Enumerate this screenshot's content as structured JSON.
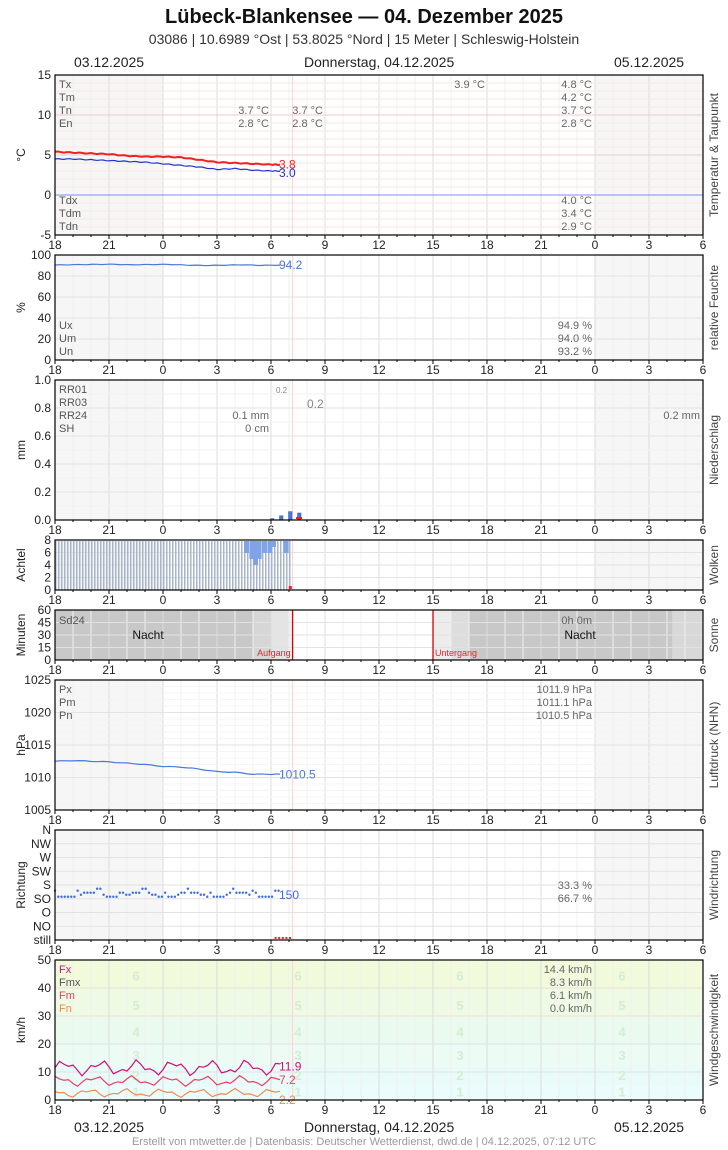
{
  "header": {
    "title": "Lübeck-Blankensee  —  04. Dezember 2025",
    "subtitle": "03086  |  10.6989 °Ost  |  53.8025 °Nord  |  15 Meter  |  Schleswig-Holstein",
    "date_left": "03.12.2025",
    "date_center": "Donnerstag, 04.12.2025",
    "date_right": "05.12.2025"
  },
  "footer": {
    "date_left": "03.12.2025",
    "date_center": "Donnerstag, 04.12.2025",
    "date_right": "05.12.2025",
    "credit": "Erstellt von mtwetter.de | Datenbasis: Deutscher Wetterdienst, dwd.de | 04.12.2025, 07:12 UTC"
  },
  "time_axis": [
    "18",
    "21",
    "0",
    "3",
    "6",
    "9",
    "12",
    "15",
    "18",
    "21",
    "0",
    "3",
    "6"
  ],
  "colors": {
    "temp": "#ee2222",
    "dewpoint": "#2233cc",
    "humidity": "#4a78d8",
    "precip": "#4a78d8",
    "pressure": "#4a78d8",
    "winddir": "#3b6de0",
    "fx": "#cc1177",
    "fm": "#e84060",
    "fn": "#f08a50",
    "sunline": "#dd0000"
  },
  "chart_data": [
    {
      "type": "line",
      "title": "Temperatur & Taupunkt",
      "ylabel": "°C",
      "ylim": [
        -5,
        15
      ],
      "yticks": [
        "15",
        "10",
        "5",
        "0",
        "-5"
      ],
      "legend_top": [
        "Tx",
        "Tm",
        "Tn",
        "En"
      ],
      "legend_bottom": [
        "Tdx",
        "Tdm",
        "Tdn"
      ],
      "values_day1": {
        "Tn": "3.7 °C",
        "En": "2.8 °C"
      },
      "values_day2_top": {
        "Tn": "3.7 °C",
        "En": "2.8 °C"
      },
      "value_noon": "3.9 °C",
      "values_right_top": {
        "Tx": "4.8 °C",
        "Tm": "4.2 °C",
        "Tn": "3.7 °C",
        "En": "2.8 °C"
      },
      "values_right_bottom": {
        "Tdx": "4.0 °C",
        "Tdm": "3.4 °C",
        "Tdn": "2.9 °C"
      },
      "series": [
        {
          "name": "Temperatur",
          "last": "3.8",
          "x_hours": [
            0,
            3,
            6,
            9,
            12,
            15,
            18,
            21,
            24,
            27,
            30,
            33,
            36,
            37.5
          ],
          "values": [
            5.4,
            5.3,
            5.2,
            5.1,
            4.9,
            4.8,
            4.8,
            4.7,
            4.4,
            4.1,
            4.0,
            3.9,
            3.8,
            3.8
          ]
        },
        {
          "name": "Taupunkt",
          "last": "3.0",
          "x_hours": [
            0,
            3,
            6,
            9,
            12,
            15,
            18,
            21,
            24,
            27,
            30,
            33,
            36,
            37.5
          ],
          "values": [
            4.5,
            4.5,
            4.4,
            4.3,
            4.2,
            4.1,
            3.9,
            3.7,
            3.5,
            3.2,
            3.3,
            3.1,
            3.0,
            3.0
          ]
        }
      ]
    },
    {
      "type": "line",
      "title": "relative Feuchte",
      "ylabel": "%",
      "ylim": [
        0,
        100
      ],
      "yticks": [
        "100",
        "80",
        "60",
        "40",
        "20",
        "0"
      ],
      "legend": [
        "Ux",
        "Um",
        "Un"
      ],
      "values_right": {
        "Ux": "94.9 %",
        "Um": "94.0 %",
        "Un": "93.2 %"
      },
      "series": [
        {
          "name": "Feuchte",
          "last": "94.2",
          "values": [
            94.3,
            94.6,
            94.8,
            95.0,
            94.5,
            94.7,
            94.9,
            94.2,
            93.8,
            94.1,
            94.5,
            93.9,
            94.2
          ]
        }
      ]
    },
    {
      "type": "bar",
      "title": "Niederschlag",
      "ylabel": "mm",
      "ylim": [
        0,
        1.0
      ],
      "yticks": [
        "1.0",
        "0.8",
        "0.6",
        "0.4",
        "0.2",
        "0.0"
      ],
      "legend": [
        "RR01",
        "RR03",
        "RR24",
        "SH"
      ],
      "values_day": {
        "RR24": "0.1 mm",
        "SH": "0 cm"
      },
      "rr01_label": "0.2",
      "rr03_label": "0.2",
      "value_right": "0.2 mm",
      "bars_hours": [
        12.0,
        12.5,
        13.0,
        13.5
      ],
      "bars_values": [
        0.01,
        0.03,
        0.06,
        0.05
      ]
    },
    {
      "type": "bar",
      "title": "Wolken",
      "ylabel": "Achtel",
      "ylim": [
        0,
        8
      ],
      "yticks": [
        "8",
        "6",
        "4",
        "2",
        "0"
      ]
    },
    {
      "type": "area",
      "title": "Sonne",
      "ylabel": "Minuten",
      "ylim": [
        0,
        60
      ],
      "yticks": [
        "60",
        "45",
        "30",
        "15",
        "0"
      ],
      "legend": [
        "Sd24"
      ],
      "value_right": "0h 0m",
      "night_label": "Nacht",
      "sunrise_label": "Aufgang",
      "sunset_label": "Untergang"
    },
    {
      "type": "line",
      "title": "Luftdruck (NHN)",
      "ylabel": "hPa",
      "ylim": [
        1005,
        1025
      ],
      "yticks": [
        "1025",
        "1020",
        "1015",
        "1010",
        "1005"
      ],
      "legend": [
        "Px",
        "Pm",
        "Pn"
      ],
      "values_right": {
        "Px": "1011.9 hPa",
        "Pm": "1011.1 hPa",
        "Pn": "1010.5 hPa"
      },
      "series": [
        {
          "name": "Luftdruck",
          "last": "1010.5",
          "x_hours": [
            0,
            1,
            2,
            3,
            4,
            5,
            6,
            7,
            8,
            9,
            10,
            11,
            12,
            12.5
          ],
          "values": [
            1012.5,
            1012.6,
            1012.5,
            1012.4,
            1012.2,
            1012.0,
            1011.7,
            1011.6,
            1011.3,
            1010.9,
            1010.8,
            1010.5,
            1010.5,
            1010.5
          ]
        }
      ]
    },
    {
      "type": "scatter",
      "title": "Windrichtung",
      "ylabel": "Richtung",
      "yticks": [
        "N",
        "NW",
        "W",
        "SW",
        "S",
        "SO",
        "O",
        "NO",
        "still"
      ],
      "values_right": {
        "S": "33.3 %",
        "SO": "66.7 %"
      },
      "last": "150"
    },
    {
      "type": "line",
      "title": "Windgeschwindigkeit",
      "ylabel": "km/h",
      "ylim": [
        0,
        50
      ],
      "yticks": [
        "50",
        "40",
        "30",
        "20",
        "10",
        "0"
      ],
      "legend": [
        "Fx",
        "Fmx",
        "Fm",
        "Fn"
      ],
      "values_right": {
        "Fx": "14.4 km/h",
        "Fmx": "8.3 km/h",
        "Fm": "6.1 km/h",
        "Fn": "0.0 km/h"
      },
      "beaufort_labels": [
        "6",
        "5",
        "4",
        "3",
        "2",
        "1"
      ],
      "series": [
        {
          "name": "Fx",
          "last": "11.9"
        },
        {
          "name": "Fm",
          "last": "7.2"
        },
        {
          "name": "Fn",
          "last": "2.2"
        }
      ]
    }
  ]
}
